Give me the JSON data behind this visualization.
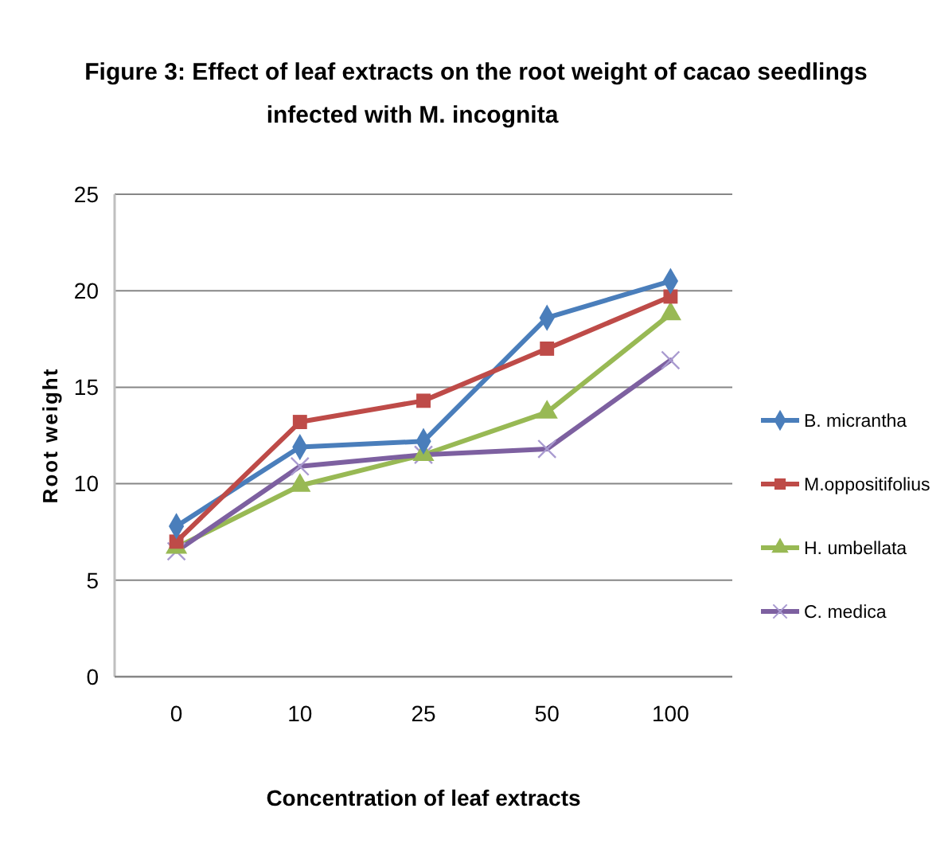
{
  "chart_data": {
    "type": "line",
    "title": "Figure 3: Effect of leaf extracts on the root weight of cacao seedlings infected with M. incognita",
    "xlabel": "Concentration of leaf extracts",
    "ylabel": "Root weight",
    "categories": [
      "0",
      "10",
      "25",
      "50",
      "100"
    ],
    "ylim": [
      0,
      25
    ],
    "yticks": [
      0,
      5,
      10,
      15,
      20,
      25
    ],
    "grid": "y",
    "legend": "right",
    "series": [
      {
        "name": "B. micrantha",
        "color": "#4a7ebb",
        "marker": "diamond",
        "values": [
          7.8,
          11.9,
          12.2,
          18.6,
          20.5
        ]
      },
      {
        "name": "M.oppositifolius",
        "color": "#be4b48",
        "marker": "square",
        "values": [
          7.0,
          13.2,
          14.3,
          17.0,
          19.7
        ]
      },
      {
        "name": "H. umbellata",
        "color": "#98b954",
        "marker": "triangle",
        "values": [
          6.7,
          9.9,
          11.5,
          13.7,
          18.8
        ]
      },
      {
        "name": "C. medica",
        "color": "#7d60a0",
        "marker": "cross",
        "values": [
          6.5,
          10.9,
          11.5,
          11.8,
          16.4
        ]
      }
    ]
  }
}
